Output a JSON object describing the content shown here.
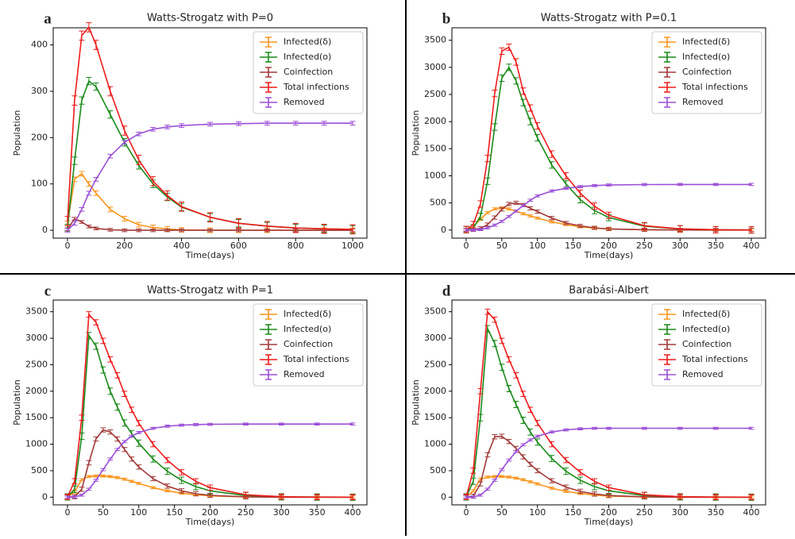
{
  "chart_data": [
    {
      "type": "line",
      "panel": "a",
      "title": "Watts-Strogatz with P=0",
      "xlabel": "Time(days)",
      "ylabel": "Population",
      "legend": "upper right",
      "x": [
        0,
        25,
        50,
        75,
        100,
        150,
        200,
        250,
        300,
        350,
        400,
        500,
        600,
        700,
        800,
        900,
        1000
      ],
      "xlim": [
        -50,
        1050
      ],
      "ylim": [
        -17,
        437
      ],
      "xticks": [
        0,
        200,
        400,
        600,
        800,
        1000
      ],
      "yticks": [
        0,
        100,
        200,
        300,
        400
      ],
      "series": [
        {
          "name": "Infected(δ)",
          "color": "#f7961e",
          "error": 5,
          "values": [
            15,
            110,
            122,
            100,
            80,
            45,
            25,
            12,
            6,
            3,
            1,
            0,
            0,
            0,
            0,
            0,
            0
          ]
        },
        {
          "name": "Infected(o)",
          "color": "#1a8a1a",
          "error": 8,
          "values": [
            5,
            150,
            280,
            322,
            310,
            250,
            190,
            140,
            100,
            72,
            50,
            28,
            15,
            9,
            5,
            3,
            2
          ]
        },
        {
          "name": "Coinfection",
          "color": "#a33a3a",
          "error": 3,
          "values": [
            2,
            25,
            18,
            8,
            4,
            1,
            0,
            0,
            0,
            0,
            0,
            0,
            0,
            0,
            0,
            0,
            0
          ]
        },
        {
          "name": "Total infections",
          "color": "#ee1c1c",
          "error": 10,
          "values": [
            20,
            280,
            420,
            438,
            400,
            300,
            215,
            152,
            106,
            75,
            51,
            28,
            15,
            9,
            5,
            3,
            2
          ]
        },
        {
          "name": "Removed",
          "color": "#9b4fd6",
          "error": 4,
          "values": [
            0,
            15,
            45,
            80,
            110,
            160,
            190,
            208,
            218,
            223,
            226,
            229,
            230,
            231,
            231,
            231,
            231
          ]
        }
      ]
    },
    {
      "type": "line",
      "panel": "b",
      "title": "Watts-Strogatz with P=0.1",
      "xlabel": "Time(days)",
      "ylabel": "Population",
      "legend": "upper right",
      "x": [
        0,
        10,
        20,
        30,
        40,
        50,
        60,
        70,
        80,
        90,
        100,
        120,
        140,
        160,
        180,
        200,
        250,
        300,
        350,
        400
      ],
      "xlim": [
        -20,
        420
      ],
      "ylim": [
        -150,
        3730
      ],
      "xticks": [
        0,
        50,
        100,
        150,
        200,
        250,
        300,
        350,
        400
      ],
      "yticks": [
        0,
        500,
        1000,
        1500,
        2000,
        2500,
        3000,
        3500
      ],
      "series": [
        {
          "name": "Infected(δ)",
          "color": "#f7961e",
          "error": 20,
          "values": [
            5,
            60,
            200,
            320,
            390,
            410,
            390,
            350,
            300,
            260,
            220,
            150,
            100,
            60,
            35,
            20,
            5,
            1,
            0,
            0
          ]
        },
        {
          "name": "Infected(o)",
          "color": "#1a8a1a",
          "error": 60,
          "values": [
            5,
            40,
            250,
            900,
            1900,
            2800,
            3000,
            2750,
            2350,
            2000,
            1700,
            1200,
            850,
            560,
            360,
            230,
            70,
            20,
            5,
            1
          ]
        },
        {
          "name": "Coinfection",
          "color": "#a33a3a",
          "error": 30,
          "values": [
            0,
            5,
            30,
            100,
            230,
            380,
            480,
            500,
            460,
            400,
            340,
            220,
            130,
            75,
            40,
            20,
            5,
            1,
            0,
            0
          ]
        },
        {
          "name": "Total infections",
          "color": "#ee1c1c",
          "error": 60,
          "values": [
            10,
            100,
            480,
            1320,
            2520,
            3300,
            3370,
            3100,
            2560,
            2250,
            1920,
            1400,
            1000,
            680,
            440,
            270,
            80,
            22,
            5,
            1
          ]
        },
        {
          "name": "Removed",
          "color": "#9b4fd6",
          "error": 20,
          "values": [
            0,
            2,
            10,
            40,
            90,
            160,
            250,
            350,
            450,
            550,
            630,
            720,
            770,
            800,
            820,
            830,
            838,
            840,
            840,
            840
          ]
        }
      ]
    },
    {
      "type": "line",
      "panel": "c",
      "title": "Watts-Strogatz with P=1",
      "xlabel": "Time(days)",
      "ylabel": "Population",
      "legend": "upper right",
      "x": [
        0,
        10,
        20,
        30,
        40,
        50,
        60,
        70,
        80,
        90,
        100,
        120,
        140,
        160,
        180,
        200,
        250,
        300,
        350,
        400
      ],
      "xlim": [
        -20,
        420
      ],
      "ylim": [
        -145,
        3720
      ],
      "xticks": [
        0,
        50,
        100,
        150,
        200,
        250,
        300,
        350,
        400
      ],
      "yticks": [
        0,
        500,
        1000,
        1500,
        2000,
        2500,
        3000,
        3500
      ],
      "series": [
        {
          "name": "Infected(δ)",
          "color": "#f7961e",
          "error": 20,
          "values": [
            0,
            100,
            330,
            390,
            400,
            400,
            390,
            370,
            340,
            300,
            260,
            180,
            120,
            75,
            45,
            25,
            5,
            1,
            0,
            0
          ]
        },
        {
          "name": "Infected(o)",
          "color": "#1a8a1a",
          "error": 60,
          "values": [
            5,
            150,
            1150,
            3050,
            2850,
            2400,
            2000,
            1700,
            1400,
            1200,
            1020,
            720,
            490,
            320,
            200,
            120,
            30,
            7,
            2,
            0
          ]
        },
        {
          "name": "Coinfection",
          "color": "#a33a3a",
          "error": 40,
          "values": [
            0,
            10,
            150,
            650,
            1100,
            1270,
            1230,
            1100,
            900,
            720,
            570,
            350,
            210,
            120,
            65,
            35,
            7,
            1,
            0,
            0
          ]
        },
        {
          "name": "Total infections",
          "color": "#ee1c1c",
          "error": 50,
          "values": [
            5,
            300,
            1500,
            3450,
            3300,
            2950,
            2600,
            2300,
            1950,
            1650,
            1400,
            1000,
            700,
            470,
            300,
            180,
            45,
            10,
            2,
            0
          ]
        },
        {
          "name": "Removed",
          "color": "#9b4fd6",
          "error": 20,
          "values": [
            0,
            5,
            40,
            150,
            320,
            520,
            720,
            900,
            1050,
            1150,
            1220,
            1300,
            1340,
            1360,
            1370,
            1375,
            1380,
            1380,
            1380,
            1380
          ]
        }
      ]
    },
    {
      "type": "line",
      "panel": "d",
      "title": "Barabási-Albert",
      "xlabel": "Time(days)",
      "ylabel": "Population",
      "legend": "upper right",
      "x": [
        0,
        10,
        20,
        30,
        40,
        50,
        60,
        70,
        80,
        90,
        100,
        120,
        140,
        160,
        180,
        200,
        250,
        300,
        350,
        400
      ],
      "xlim": [
        -20,
        420
      ],
      "ylim": [
        -145,
        3720
      ],
      "xticks": [
        0,
        50,
        100,
        150,
        200,
        250,
        300,
        350,
        400
      ],
      "yticks": [
        0,
        500,
        1000,
        1500,
        2000,
        2500,
        3000,
        3500
      ],
      "series": [
        {
          "name": "Infected(δ)",
          "color": "#f7961e",
          "error": 20,
          "values": [
            0,
            120,
            340,
            380,
            390,
            390,
            380,
            360,
            330,
            290,
            250,
            170,
            110,
            70,
            40,
            22,
            4,
            1,
            0,
            0
          ]
        },
        {
          "name": "Infected(o)",
          "color": "#1a8a1a",
          "error": 60,
          "values": [
            5,
            300,
            1500,
            3180,
            2900,
            2450,
            2050,
            1750,
            1450,
            1230,
            1040,
            730,
            490,
            320,
            200,
            120,
            30,
            7,
            2,
            0
          ]
        },
        {
          "name": "Coinfection",
          "color": "#a33a3a",
          "error": 40,
          "values": [
            0,
            20,
            250,
            800,
            1140,
            1150,
            1050,
            920,
            760,
            620,
            500,
            310,
            190,
            110,
            60,
            32,
            6,
            1,
            0,
            0
          ]
        },
        {
          "name": "Total infections",
          "color": "#ee1c1c",
          "error": 50,
          "values": [
            5,
            500,
            2000,
            3500,
            3350,
            2950,
            2600,
            2300,
            1950,
            1650,
            1400,
            1000,
            700,
            470,
            300,
            180,
            45,
            10,
            2,
            0
          ]
        },
        {
          "name": "Removed",
          "color": "#9b4fd6",
          "error": 20,
          "values": [
            0,
            5,
            40,
            150,
            320,
            520,
            700,
            860,
            990,
            1080,
            1150,
            1230,
            1270,
            1290,
            1300,
            1300,
            1300,
            1300,
            1300,
            1300
          ]
        }
      ]
    }
  ]
}
